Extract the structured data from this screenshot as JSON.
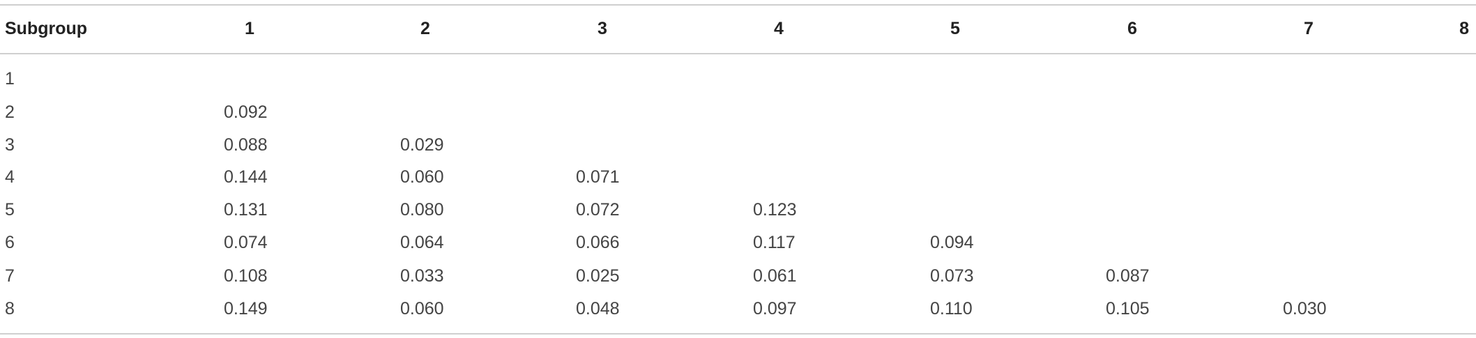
{
  "table": {
    "header": [
      "Subgroup",
      "1",
      "2",
      "3",
      "4",
      "5",
      "6",
      "7",
      "8"
    ],
    "rows": [
      {
        "label": "1",
        "values": []
      },
      {
        "label": "2",
        "values": [
          "0.092"
        ]
      },
      {
        "label": "3",
        "values": [
          "0.088",
          "0.029"
        ]
      },
      {
        "label": "4",
        "values": [
          "0.144",
          "0.060",
          "0.071"
        ]
      },
      {
        "label": "5",
        "values": [
          "0.131",
          "0.080",
          "0.072",
          "0.123"
        ]
      },
      {
        "label": "6",
        "values": [
          "0.074",
          "0.064",
          "0.066",
          "0.117",
          "0.094"
        ]
      },
      {
        "label": "7",
        "values": [
          "0.108",
          "0.033",
          "0.025",
          "0.061",
          "0.073",
          "0.087"
        ]
      },
      {
        "label": "8",
        "values": [
          "0.149",
          "0.060",
          "0.048",
          "0.097",
          "0.110",
          "0.105",
          "0.030"
        ]
      }
    ]
  }
}
